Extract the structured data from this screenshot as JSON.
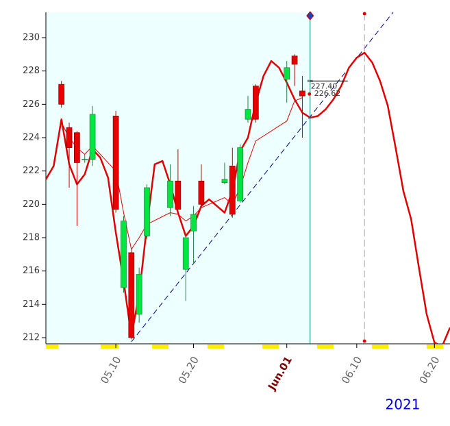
{
  "chart_data": {
    "type": "candlestick",
    "year_label": "2021",
    "xlim": [
      "2021-05-01",
      "2021-06-22"
    ],
    "ylim": [
      211.63,
      231.52
    ],
    "yticks": [
      212,
      214,
      216,
      218,
      220,
      222,
      224,
      226,
      228,
      230
    ],
    "xticks": [
      {
        "value": "2021-05-10",
        "label": "05.10"
      },
      {
        "value": "2021-05-20",
        "label": "05.20"
      },
      {
        "value": "2021-06-01",
        "label": "Jun.01"
      },
      {
        "value": "2021-06-10",
        "label": "06.10"
      },
      {
        "value": "2021-06-20",
        "label": "06.20"
      }
    ],
    "up_color": "#00e640",
    "down_color": "#e60000",
    "x": [
      "2021-05-03",
      "2021-05-04",
      "2021-05-05",
      "2021-05-06",
      "2021-05-07",
      "2021-05-10",
      "2021-05-11",
      "2021-05-12",
      "2021-05-13",
      "2021-05-14",
      "2021-05-17",
      "2021-05-18",
      "2021-05-19",
      "2021-05-20",
      "2021-05-21",
      "2021-05-24",
      "2021-05-25",
      "2021-05-26",
      "2021-05-27",
      "2021-05-28",
      "2021-06-01",
      "2021-06-02",
      "2021-06-03"
    ],
    "open": [
      227.2,
      224.6,
      224.3,
      222.7,
      222.7,
      225.3,
      215.0,
      217.1,
      213.4,
      218.1,
      219.8,
      221.4,
      216.1,
      218.4,
      221.4,
      221.3,
      222.3,
      220.2,
      225.1,
      227.1,
      227.5,
      228.9,
      226.8
    ],
    "high": [
      227.4,
      224.9,
      224.4,
      223.0,
      225.9,
      225.6,
      219.3,
      217.3,
      216.2,
      221.2,
      222.4,
      223.3,
      218.2,
      219.9,
      222.4,
      222.5,
      223.4,
      223.6,
      226.5,
      227.2,
      228.6,
      229.0,
      227.7
    ],
    "low": [
      225.8,
      221.0,
      218.7,
      222.5,
      222.3,
      219.5,
      214.7,
      211.9,
      212.9,
      217.9,
      219.3,
      219.7,
      214.2,
      216.4,
      219.9,
      221.2,
      219.2,
      220.1,
      224.9,
      224.9,
      226.1,
      227.1,
      224.0
    ],
    "close": [
      226.0,
      223.4,
      222.5,
      222.7,
      225.4,
      219.7,
      219.0,
      212.0,
      215.8,
      221.0,
      221.4,
      219.7,
      218.0,
      219.4,
      220.0,
      221.5,
      219.4,
      223.4,
      225.7,
      225.1,
      228.2,
      228.4,
      226.5
    ],
    "lines": [
      {
        "color": "#e00000",
        "width": 2.5,
        "x": [
          "2021-05-01",
          "2021-05-02",
          "2021-05-03",
          "2021-05-04",
          "2021-05-05",
          "2021-05-06",
          "2021-05-07",
          "2021-05-08",
          "2021-05-09",
          "2021-05-10",
          "2021-05-11",
          "2021-05-12",
          "2021-05-13",
          "2021-05-14",
          "2021-05-15",
          "2021-05-16",
          "2021-05-17",
          "2021-05-18",
          "2021-05-19",
          "2021-05-20",
          "2021-05-21",
          "2021-05-22",
          "2021-05-23",
          "2021-05-24",
          "2021-05-25",
          "2021-05-26",
          "2021-05-27",
          "2021-05-28",
          "2021-05-29",
          "2021-05-30",
          "2021-05-31",
          "2021-06-01",
          "2021-06-02",
          "2021-06-03",
          "2021-06-04",
          "2021-06-05",
          "2021-06-06",
          "2021-06-07",
          "2021-06-08",
          "2021-06-09",
          "2021-06-10",
          "2021-06-11",
          "2021-06-12",
          "2021-06-13",
          "2021-06-14",
          "2021-06-15",
          "2021-06-16",
          "2021-06-17",
          "2021-06-18",
          "2021-06-19",
          "2021-06-20",
          "2021-06-21",
          "2021-06-22"
        ],
        "values": [
          221.5,
          222.3,
          225.1,
          222.4,
          221.2,
          221.8,
          223.3,
          222.8,
          221.6,
          218.3,
          215.4,
          212.1,
          214.6,
          218.7,
          222.4,
          222.6,
          221.2,
          219.5,
          218.1,
          218.7,
          219.9,
          220.3,
          219.9,
          219.5,
          220.8,
          223.2,
          224.0,
          226.1,
          227.7,
          228.6,
          228.2,
          227.3,
          226.3,
          225.5,
          225.2,
          225.3,
          225.7,
          226.3,
          227.1,
          228.2,
          228.8,
          229.1,
          228.5,
          227.4,
          225.9,
          223.4,
          220.8,
          219.1,
          216.2,
          213.4,
          211.7,
          211.5,
          212.6
        ]
      },
      {
        "color": "#e00000",
        "width": 1,
        "x": [
          "2021-05-03",
          "2021-05-04",
          "2021-05-05",
          "2021-05-06",
          "2021-05-07",
          "2021-05-10",
          "2021-05-11",
          "2021-05-12",
          "2021-05-13",
          "2021-05-14",
          "2021-05-17",
          "2021-05-18",
          "2021-05-19",
          "2021-05-20",
          "2021-05-21",
          "2021-05-24",
          "2021-05-25",
          "2021-05-26",
          "2021-05-27",
          "2021-05-28",
          "2021-06-01",
          "2021-06-02",
          "2021-06-03"
        ],
        "values": [
          224.9,
          224.0,
          223.4,
          223.0,
          223.5,
          222.0,
          219.5,
          217.3,
          218.0,
          218.8,
          219.5,
          219.4,
          219.0,
          219.3,
          219.8,
          220.4,
          220.0,
          221.0,
          222.5,
          223.8,
          225.0,
          226.2,
          226.4
        ]
      }
    ],
    "trendline": {
      "color": "#000080",
      "x": [
        "2021-05-12",
        "2021-06-16"
      ],
      "values": [
        211.75,
        232.3
      ]
    },
    "price_labels": [
      {
        "value": 227.4,
        "label": "227.40",
        "color": "#808080"
      },
      {
        "value": 226.62,
        "label": "226.62",
        "color": "#e00000"
      }
    ],
    "current_date": "2021-06-04",
    "forecast_date": "2021-06-11"
  }
}
